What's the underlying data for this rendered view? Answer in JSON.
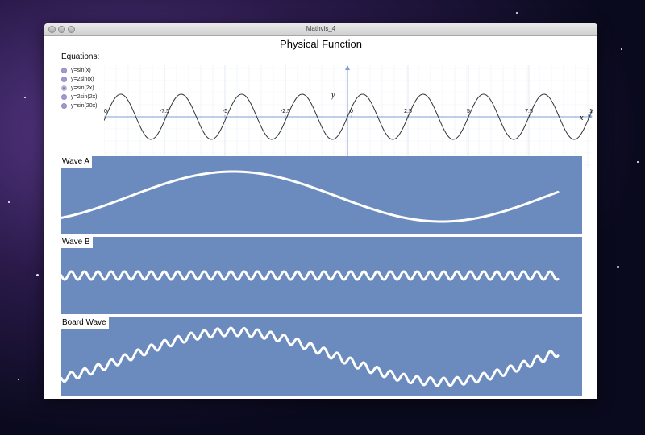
{
  "window": {
    "title": "Mathvis_4"
  },
  "page": {
    "title": "Physical Function"
  },
  "equations": {
    "title": "Equations:",
    "items": [
      "y=sin(x)",
      "y=2sin(x)",
      "y=sin(2x)",
      "y=2sin(2x)",
      "y=sin(20x)"
    ],
    "selected_index": 2
  },
  "graph": {
    "x_ticks": [
      "0",
      "-7.5",
      "-5",
      "-2.5",
      "0",
      "2.5",
      "5",
      "7.5",
      "1"
    ],
    "y_label": "y",
    "x_label": "x",
    "curve_color": "#333333",
    "axis_color": "#7f9fcf"
  },
  "panels": {
    "wave_a": {
      "label": "Wave A"
    },
    "wave_b": {
      "label": "Wave B"
    },
    "board_wave": {
      "label": "Board Wave"
    },
    "background": "#6b8bbf",
    "stroke": "#ffffff"
  }
}
